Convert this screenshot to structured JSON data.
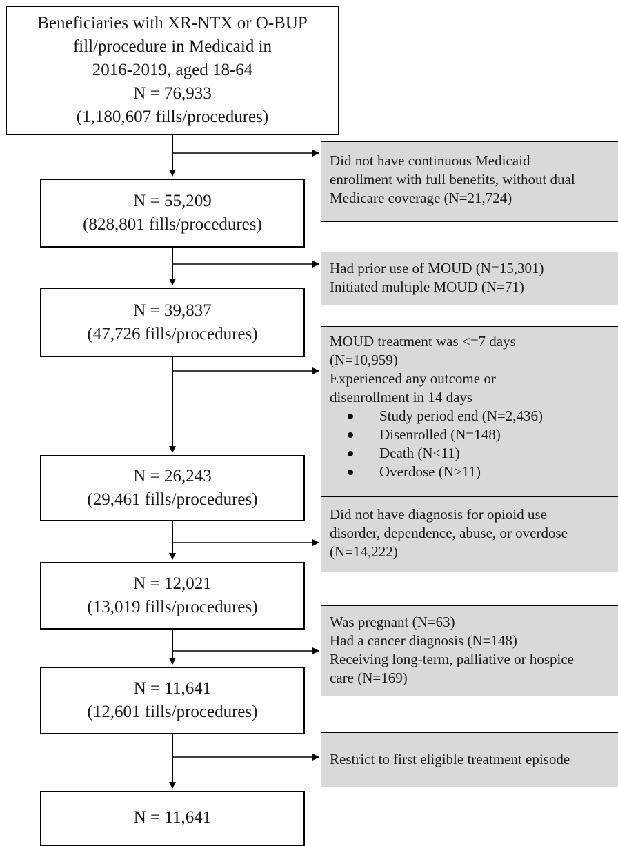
{
  "flow": {
    "main_boxes": [
      {
        "lines": [
          "Beneficiaries with XR-NTX or O-BUP",
          "fill/procedure in Medicaid in",
          "2016-2019, aged 18-64",
          "N = 76,933",
          "(1,180,607 fills/procedures)"
        ]
      },
      {
        "lines": [
          "N = 55,209",
          "(828,801 fills/procedures)"
        ]
      },
      {
        "lines": [
          "N = 39,837",
          "(47,726 fills/procedures)"
        ]
      },
      {
        "lines": [
          "N = 26,243",
          "(29,461 fills/procedures)"
        ]
      },
      {
        "lines": [
          "N = 12,021",
          "(13,019 fills/procedures)"
        ]
      },
      {
        "lines": [
          "N = 11,641",
          "(12,601 fills/procedures)"
        ]
      },
      {
        "lines": [
          "N = 11,641"
        ]
      }
    ],
    "exclusions": [
      {
        "lines": [
          "Did not have continuous Medicaid",
          "enrollment with full benefits, without dual",
          "Medicare coverage (N=21,724)"
        ],
        "bullets": []
      },
      {
        "lines": [
          "Had prior use of MOUD (N=15,301)",
          "Initiated multiple MOUD (N=71)"
        ],
        "bullets": []
      },
      {
        "lines": [
          "MOUD treatment was <=7 days",
          "(N=10,959)",
          "Experienced any outcome or",
          "disenrollment in 14 days"
        ],
        "bullets": [
          "Study period end (N=2,436)",
          "Disenrolled (N=148)",
          "Death (N<11)",
          "Overdose (N>11)"
        ]
      },
      {
        "lines": [
          "Did not have diagnosis for opioid use",
          "disorder, dependence, abuse, or overdose",
          "(N=14,222)"
        ],
        "bullets": []
      },
      {
        "lines": [
          "Was pregnant (N=63)",
          "Had a cancer diagnosis (N=148)",
          "Receiving long-term, palliative or hospice",
          "care (N=169)"
        ],
        "bullets": []
      },
      {
        "lines": [
          "Restrict to first eligible treatment episode"
        ],
        "bullets": []
      }
    ]
  }
}
